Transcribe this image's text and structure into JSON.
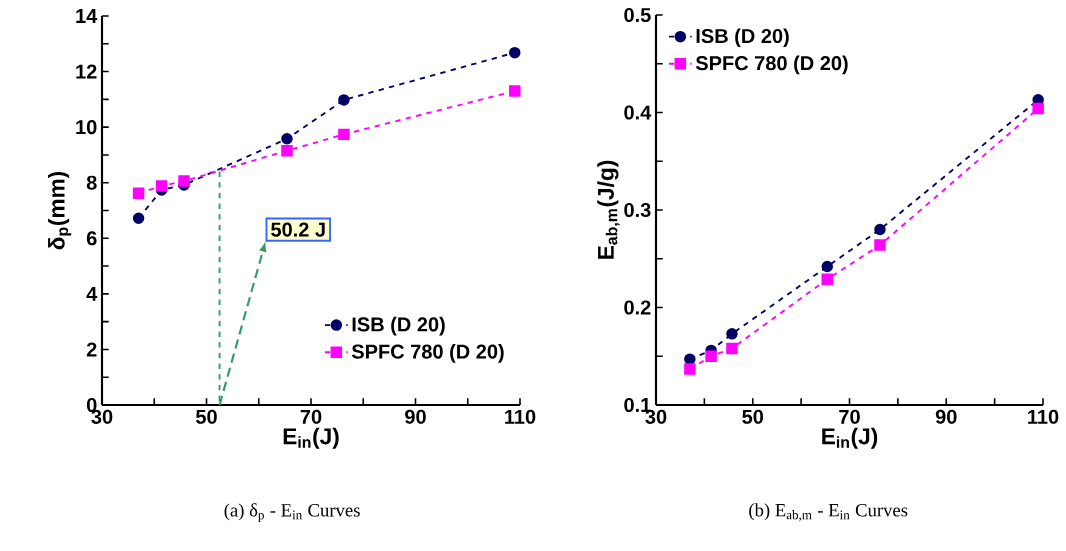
{
  "chart_data": [
    {
      "type": "line",
      "xlabel": "E$_{in}$(J)",
      "ylabel": "δ$_{p}$(mm)",
      "xlim": [
        30,
        110
      ],
      "ylim": [
        0,
        14
      ],
      "xticks": [
        30,
        {
          "value": 40,
          "label": null
        },
        50,
        {
          "value": 60,
          "label": null
        },
        70,
        {
          "value": 80,
          "label": null
        },
        90,
        {
          "value": 100,
          "label": null
        },
        110
      ],
      "yticks": [
        0,
        {
          "value": 1,
          "label": null
        },
        2,
        {
          "value": 3,
          "label": null
        },
        4,
        {
          "value": 5,
          "label": null
        },
        6,
        {
          "value": 7,
          "label": null
        },
        8,
        {
          "value": 9,
          "label": null
        },
        10,
        {
          "value": 11,
          "label": null
        },
        12,
        {
          "value": 13,
          "label": null
        },
        14
      ],
      "x": [
        37,
        41.4,
        45.7,
        65.4,
        76.3,
        109
      ],
      "series": [
        {
          "name": "ISB (D 20)",
          "color": "#000066",
          "marker": "circle",
          "line_style": "dashed",
          "values": [
            6.72,
            7.74,
            7.92,
            9.58,
            10.98,
            12.68
          ]
        },
        {
          "name": "SPFC 780 (D 20)",
          "color": "#ff00ff",
          "marker": "square",
          "line_style": "dashed",
          "values": [
            7.62,
            7.88,
            8.06,
            9.15,
            9.74,
            11.3
          ]
        },
        {
          "type": "line",
          "color": "#339966",
          "marker": "none",
          "line_style": "dashed",
          "x": [
            52.5,
            52.5
          ],
          "values": [
            8.4,
            0
          ]
        }
      ],
      "legend": "bottom right",
      "grid": false,
      "annotations": [
        {
          "text": "50.2 J",
          "x": 52.5,
          "y": 0
        },
        "(a)  δ$_{p}$ - E$_{in}$ Curves"
      ]
    },
    {
      "type": "line",
      "xlabel": "E$_{in}$(J)",
      "ylabel": "E$_{ab,m}$(J/g)",
      "xlim": [
        30,
        110
      ],
      "ylim": [
        0.1,
        0.5
      ],
      "xticks": [
        30,
        {
          "value": 40,
          "label": null
        },
        50,
        {
          "value": 60,
          "label": null
        },
        70,
        {
          "value": 80,
          "label": null
        },
        90,
        {
          "value": 100,
          "label": null
        },
        110
      ],
      "yticks": [
        0.1,
        {
          "value": 0.15,
          "label": null
        },
        0.2,
        {
          "value": 0.25,
          "label": null
        },
        0.3,
        {
          "value": 0.35,
          "label": null
        },
        0.4,
        {
          "value": 0.45,
          "label": null
        },
        0.5
      ],
      "x": [
        37,
        41.4,
        45.7,
        65.4,
        76.3,
        109
      ],
      "series": [
        {
          "name": "ISB (D 20)",
          "color": "#000066",
          "marker": "circle",
          "line_style": "dashed",
          "values": [
            0.147,
            0.156,
            0.173,
            0.242,
            0.28,
            0.413
          ]
        },
        {
          "name": "SPFC 780 (D 20)",
          "color": "#ff00ff",
          "marker": "square",
          "line_style": "dashed",
          "values": [
            0.137,
            0.15,
            0.158,
            0.229,
            0.264,
            0.404
          ]
        }
      ],
      "legend": "top left",
      "grid": false,
      "annotations": [
        "(b)  E$_{ab,m}$ - E$_{in}$ Curves"
      ]
    }
  ]
}
